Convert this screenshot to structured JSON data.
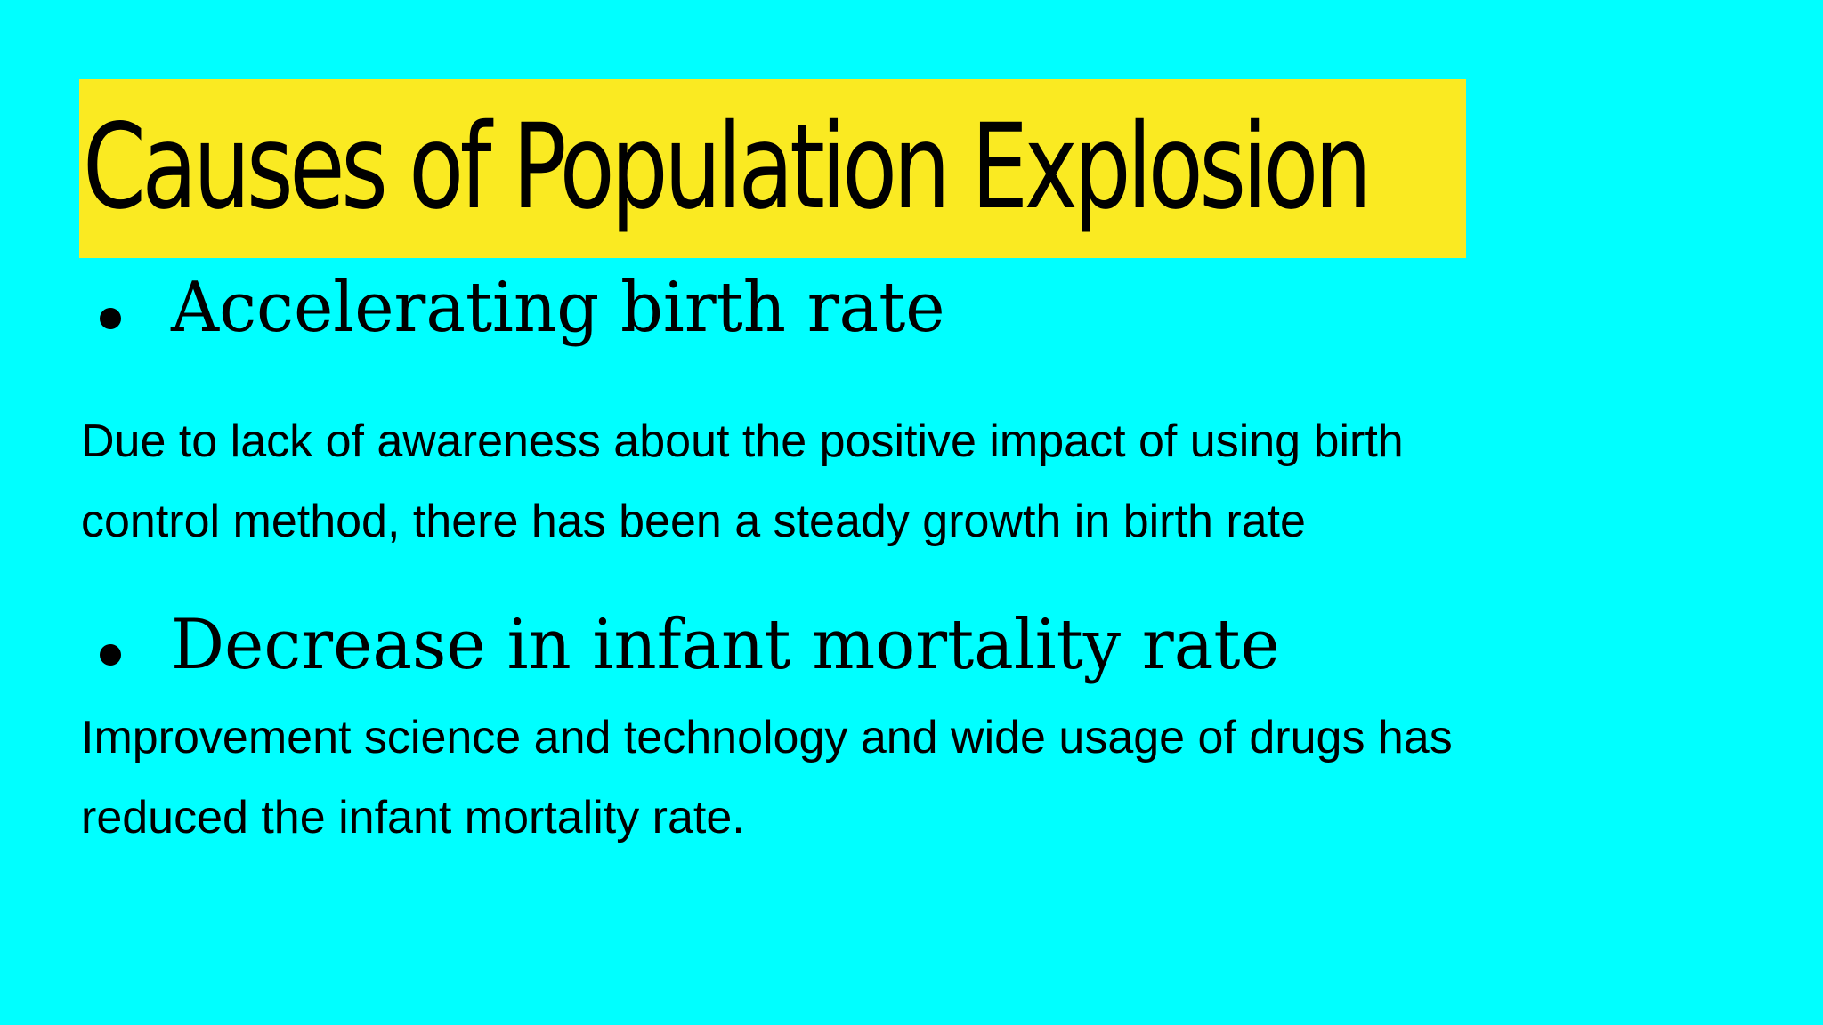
{
  "slide": {
    "title": "Causes of Population Explosion",
    "points": [
      {
        "heading": "Accelerating birth rate",
        "lines": [
          "Due to lack of awareness about the positive impact of using birth",
          "control method, there has been a steady growth in birth rate"
        ]
      },
      {
        "heading": "Decrease in infant mortality rate",
        "lines": [
          "Improvement science and technology and wide usage of drugs has",
          "reduced the infant mortality rate."
        ]
      }
    ]
  },
  "colors": {
    "background": "#00ffff",
    "title_highlight": "#faea22",
    "text": "#000000"
  }
}
